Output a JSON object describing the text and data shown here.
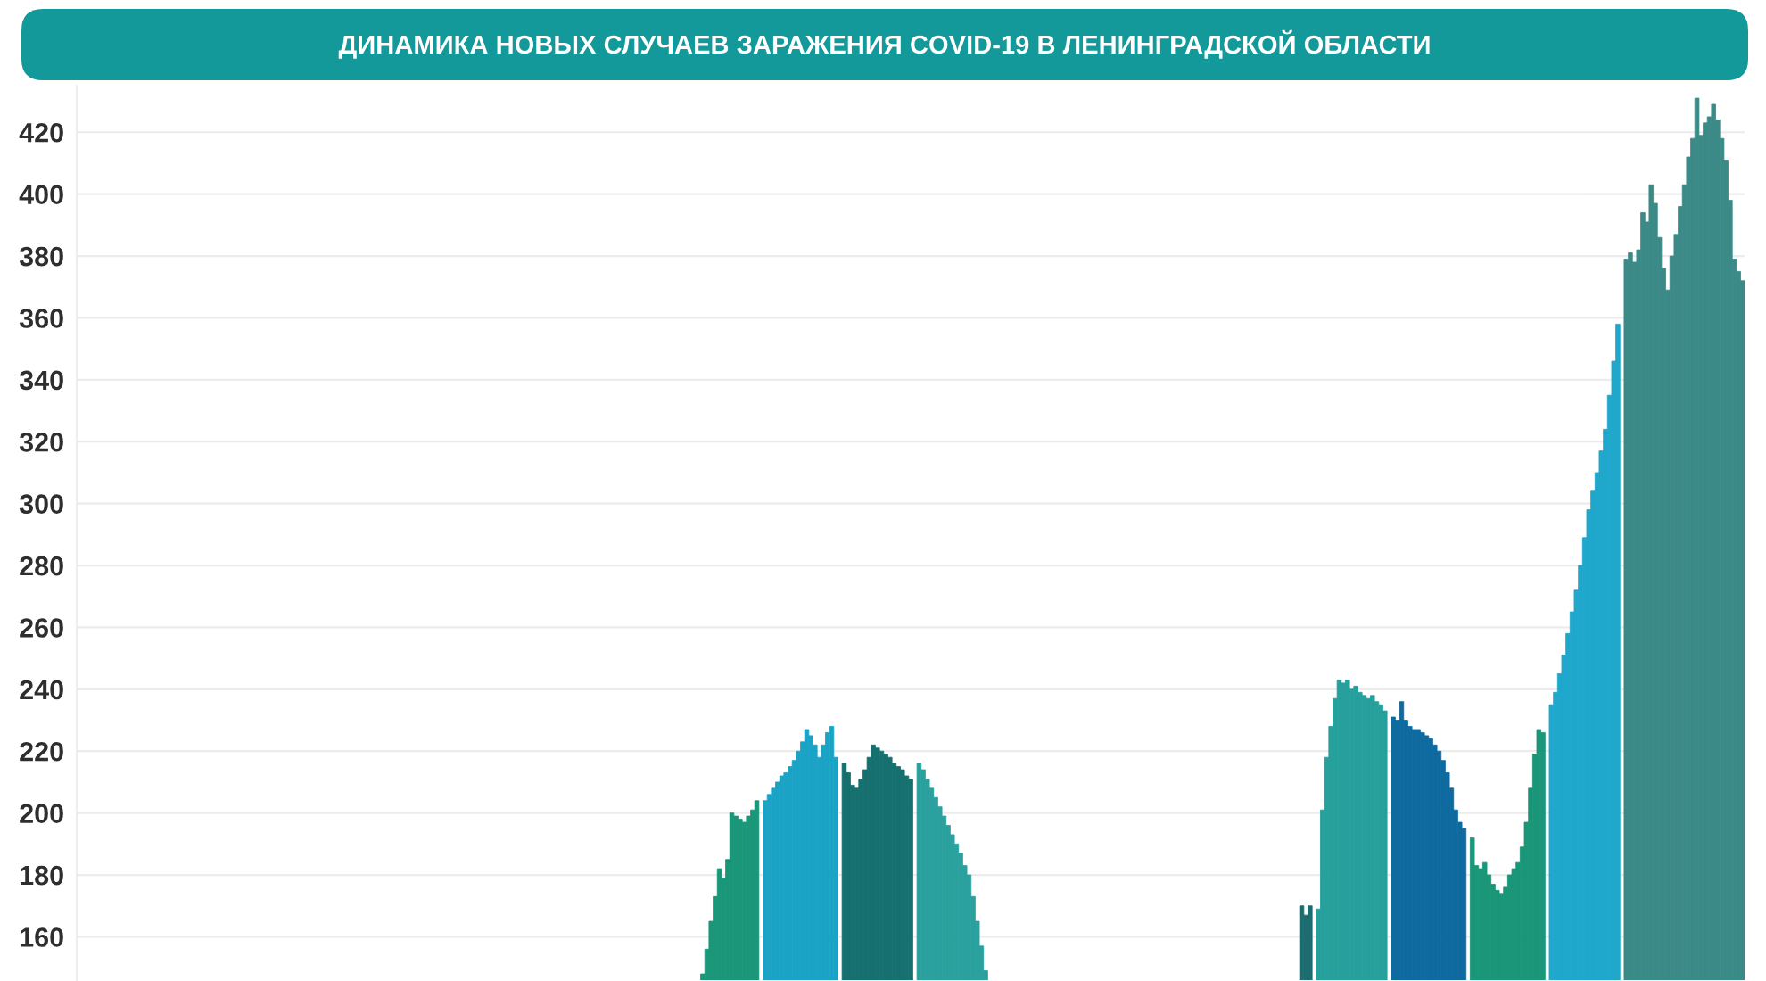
{
  "chart_data": {
    "type": "bar",
    "title": "ДИНАМИКА НОВЫХ СЛУЧАЕВ ЗАРАЖЕНИЯ COVID-19 В ЛЕНИНГРАДСКОЙ ОБЛАСТИ",
    "categories": [
      null,
      null,
      null,
      null,
      null,
      null,
      null,
      null,
      null,
      null,
      null,
      null,
      null,
      null,
      null,
      null,
      null,
      null,
      null,
      null,
      null,
      null,
      null,
      null,
      null,
      null,
      null,
      null,
      null,
      null,
      null,
      null,
      null,
      null,
      null,
      null,
      null,
      null,
      null,
      null,
      null,
      null,
      null,
      null,
      null,
      null,
      null,
      null,
      null,
      null,
      null,
      null,
      null,
      null,
      null,
      null,
      null,
      null,
      null,
      null,
      null,
      null,
      null,
      null,
      null,
      null,
      null,
      null,
      null,
      null,
      null,
      null,
      null,
      null,
      null,
      null,
      null,
      null,
      null,
      null,
      null,
      null,
      null,
      null,
      null,
      null,
      null,
      null,
      null,
      null,
      null,
      null,
      null,
      null,
      null,
      null,
      null,
      null,
      null,
      null,
      null,
      null,
      null,
      null,
      null,
      null,
      null,
      null,
      null,
      null,
      null,
      null,
      null,
      null,
      null,
      null,
      null,
      null,
      null,
      null,
      null,
      null,
      null,
      null,
      null,
      null,
      null,
      null,
      null,
      null,
      null,
      null,
      null,
      null,
      null,
      null,
      null,
      null,
      null,
      null,
      null,
      null,
      null,
      null,
      null,
      null,
      null,
      null,
      null,
      null,
      null,
      null,
      null,
      null,
      null,
      null,
      null,
      null,
      null,
      null,
      null,
      null,
      null,
      null,
      null,
      null,
      null,
      null,
      null,
      null,
      null,
      null,
      null,
      null,
      null,
      null,
      null,
      null,
      null,
      null,
      null,
      null,
      null,
      null,
      null,
      null,
      null,
      null,
      null,
      null,
      null,
      null,
      null,
      null,
      null,
      null,
      null,
      null,
      null,
      null,
      null,
      null,
      null,
      null,
      null,
      null,
      null,
      null,
      null,
      null,
      null,
      null,
      null,
      null,
      null,
      null,
      null,
      null,
      null,
      null,
      null,
      null,
      null,
      null,
      null,
      null,
      null,
      null,
      null,
      null,
      null,
      null,
      null,
      null,
      null,
      null,
      null,
      null,
      null,
      null,
      null,
      null,
      null,
      null,
      null,
      null,
      null,
      null,
      null,
      null,
      null,
      null,
      null,
      null,
      null,
      null,
      null,
      null,
      null,
      null,
      null,
      null,
      null,
      null,
      null,
      null,
      null,
      null,
      null,
      null,
      null,
      null,
      null,
      null,
      null,
      null,
      null,
      null,
      null,
      null,
      null,
      null,
      null,
      null,
      null,
      null,
      null,
      null,
      null,
      null,
      null,
      null,
      null,
      null,
      null,
      null,
      null,
      null,
      null,
      null,
      null,
      null,
      null,
      null,
      null,
      null,
      null,
      null,
      null,
      null,
      null,
      null,
      null,
      null,
      null,
      null,
      null,
      null,
      null,
      null,
      null,
      null,
      null,
      null,
      null,
      null,
      null,
      null,
      null,
      null,
      null,
      null,
      null,
      null,
      null,
      null,
      null,
      null,
      null,
      null,
      null,
      null,
      null,
      null,
      null,
      null,
      null,
      null,
      null,
      null,
      null,
      null,
      null,
      null,
      null,
      null,
      null,
      null,
      null,
      null,
      null,
      null,
      null,
      null,
      null,
      null,
      null,
      null,
      null,
      null,
      null,
      null,
      null,
      null,
      null,
      null,
      null,
      null,
      null,
      null,
      null,
      null,
      null,
      null,
      null,
      null,
      null,
      null,
      null,
      null,
      null,
      null,
      null,
      null,
      null,
      null,
      null,
      null,
      null,
      null,
      null
    ],
    "values": [
      null,
      null,
      null,
      null,
      null,
      null,
      null,
      null,
      null,
      null,
      null,
      null,
      null,
      null,
      null,
      null,
      null,
      null,
      null,
      null,
      null,
      null,
      null,
      null,
      null,
      null,
      null,
      null,
      null,
      null,
      null,
      null,
      null,
      null,
      null,
      null,
      null,
      null,
      null,
      null,
      null,
      null,
      null,
      null,
      null,
      null,
      null,
      null,
      null,
      null,
      null,
      null,
      null,
      null,
      null,
      null,
      null,
      null,
      null,
      null,
      null,
      null,
      null,
      null,
      null,
      null,
      null,
      null,
      null,
      null,
      null,
      null,
      null,
      null,
      null,
      null,
      null,
      null,
      null,
      null,
      null,
      null,
      null,
      null,
      null,
      null,
      null,
      null,
      null,
      null,
      null,
      null,
      null,
      null,
      null,
      null,
      null,
      null,
      null,
      null,
      null,
      null,
      null,
      null,
      null,
      null,
      null,
      null,
      null,
      null,
      null,
      null,
      null,
      null,
      null,
      null,
      null,
      null,
      null,
      null,
      null,
      null,
      null,
      null,
      null,
      null,
      null,
      null,
      null,
      null,
      null,
      null,
      null,
      null,
      null,
      null,
      null,
      null,
      null,
      null,
      null,
      null,
      null,
      null,
      null,
      null,
      null,
      null,
      null,
      null,
      148,
      156,
      165,
      173,
      182,
      179,
      185,
      200,
      199,
      198,
      197,
      199,
      201,
      204,
      null,
      204,
      206,
      208,
      210,
      212,
      213,
      215,
      217,
      220,
      223,
      227,
      225,
      222,
      218,
      222,
      226,
      228,
      218,
      null,
      216,
      213,
      209,
      208,
      211,
      214,
      218,
      222,
      221,
      220,
      219,
      218,
      216,
      215,
      214,
      212,
      211,
      null,
      216,
      214,
      211,
      208,
      205,
      202,
      199,
      196,
      193,
      190,
      187,
      183,
      180,
      173,
      165,
      157,
      149,
      null,
      null,
      null,
      null,
      null,
      null,
      null,
      null,
      null,
      null,
      null,
      null,
      null,
      null,
      null,
      null,
      null,
      null,
      null,
      null,
      null,
      null,
      null,
      null,
      null,
      null,
      null,
      null,
      null,
      null,
      null,
      null,
      null,
      null,
      null,
      null,
      null,
      null,
      null,
      null,
      null,
      null,
      null,
      null,
      null,
      null,
      null,
      null,
      null,
      null,
      null,
      null,
      null,
      null,
      null,
      null,
      null,
      null,
      null,
      null,
      null,
      null,
      null,
      null,
      null,
      null,
      null,
      null,
      null,
      null,
      null,
      null,
      null,
      null,
      null,
      170,
      167,
      170,
      null,
      169,
      201,
      218,
      228,
      237,
      243,
      242,
      243,
      240,
      241,
      239,
      238,
      237,
      238,
      236,
      235,
      233,
      null,
      231,
      230,
      236,
      230,
      228,
      227,
      227,
      226,
      225,
      224,
      222,
      220,
      217,
      213,
      208,
      201,
      197,
      195,
      null,
      192,
      183,
      182,
      184,
      180,
      177,
      175,
      174,
      176,
      180,
      182,
      184,
      189,
      197,
      208,
      219,
      227,
      226,
      null,
      235,
      239,
      245,
      251,
      258,
      265,
      272,
      280,
      289,
      298,
      304,
      310,
      317,
      324,
      335,
      346,
      358,
      null,
      379,
      381,
      378,
      382,
      394,
      391,
      403,
      397,
      386,
      376,
      369,
      380,
      387,
      396,
      403,
      412,
      418,
      431,
      419,
      423,
      425,
      429,
      424,
      418,
      411,
      398,
      379,
      375,
      372
    ],
    "colors": [
      null,
      null,
      null,
      null,
      null,
      null,
      null,
      null,
      null,
      null,
      null,
      null,
      null,
      null,
      null,
      null,
      null,
      null,
      null,
      null,
      null,
      null,
      null,
      null,
      null,
      null,
      null,
      null,
      null,
      null,
      null,
      null,
      null,
      null,
      null,
      null,
      null,
      null,
      null,
      null,
      null,
      null,
      null,
      null,
      null,
      null,
      null,
      null,
      null,
      null,
      null,
      null,
      null,
      null,
      null,
      null,
      null,
      null,
      null,
      null,
      null,
      null,
      null,
      null,
      null,
      null,
      null,
      null,
      null,
      null,
      null,
      null,
      null,
      null,
      null,
      null,
      null,
      null,
      null,
      null,
      null,
      null,
      null,
      null,
      null,
      null,
      null,
      null,
      null,
      null,
      null,
      null,
      null,
      null,
      null,
      null,
      null,
      null,
      null,
      null,
      null,
      null,
      null,
      null,
      null,
      null,
      null,
      null,
      null,
      null,
      null,
      null,
      null,
      null,
      null,
      null,
      null,
      null,
      null,
      null,
      null,
      null,
      null,
      null,
      null,
      null,
      null,
      null,
      null,
      null,
      null,
      null,
      null,
      null,
      null,
      null,
      null,
      null,
      null,
      null,
      null,
      null,
      null,
      null,
      null,
      null,
      null,
      null,
      null,
      null,
      "#1a9678",
      "#1a9678",
      "#1a9678",
      "#1a9678",
      "#1a9678",
      "#1a9678",
      "#1a9678",
      "#1a9678",
      "#1a9678",
      "#1a9678",
      "#1a9678",
      "#1a9678",
      "#1a9678",
      "#1a9678",
      null,
      "#1ba3c6",
      "#1ba3c6",
      "#1ba3c6",
      "#1ba3c6",
      "#1ba3c6",
      "#1ba3c6",
      "#1ba3c6",
      "#1ba3c6",
      "#1ba3c6",
      "#1ba3c6",
      "#1ba3c6",
      "#1ba3c6",
      "#1ba3c6",
      "#1ba3c6",
      "#1ba3c6",
      "#1ba3c6",
      "#1ba3c6",
      "#1ba3c6",
      null,
      "#16706f",
      "#16706f",
      "#16706f",
      "#16706f",
      "#16706f",
      "#16706f",
      "#16706f",
      "#16706f",
      "#16706f",
      "#16706f",
      "#16706f",
      "#16706f",
      "#16706f",
      "#16706f",
      "#16706f",
      "#16706f",
      "#16706f",
      null,
      "#2aa19e",
      "#2aa19e",
      "#2aa19e",
      "#2aa19e",
      "#2aa19e",
      "#2aa19e",
      "#2aa19e",
      "#2aa19e",
      "#2aa19e",
      "#2aa19e",
      "#2aa19e",
      "#2aa19e",
      "#2aa19e",
      "#2aa19e",
      "#2aa19e",
      "#2aa19e",
      "#2aa19e",
      null,
      null,
      null,
      null,
      null,
      null,
      null,
      null,
      null,
      null,
      null,
      null,
      null,
      null,
      null,
      null,
      null,
      null,
      null,
      null,
      null,
      null,
      null,
      null,
      null,
      null,
      null,
      null,
      null,
      null,
      null,
      null,
      null,
      null,
      null,
      null,
      null,
      null,
      null,
      null,
      null,
      null,
      null,
      null,
      null,
      null,
      null,
      null,
      null,
      null,
      null,
      null,
      null,
      null,
      null,
      null,
      null,
      null,
      null,
      null,
      null,
      null,
      null,
      null,
      null,
      null,
      null,
      null,
      null,
      null,
      null,
      null,
      null,
      null,
      null,
      "#1d6c70",
      "#1d6c70",
      "#1d6c70",
      null,
      "#26a09c",
      "#26a09c",
      "#26a09c",
      "#26a09c",
      "#26a09c",
      "#26a09c",
      "#26a09c",
      "#26a09c",
      "#26a09c",
      "#26a09c",
      "#26a09c",
      "#26a09c",
      "#26a09c",
      "#26a09c",
      "#26a09c",
      "#26a09c",
      "#26a09c",
      null,
      "#0f6aa0",
      "#0f6aa0",
      "#0f6aa0",
      "#0f6aa0",
      "#0f6aa0",
      "#0f6aa0",
      "#0f6aa0",
      "#0f6aa0",
      "#0f6aa0",
      "#0f6aa0",
      "#0f6aa0",
      "#0f6aa0",
      "#0f6aa0",
      "#0f6aa0",
      "#0f6aa0",
      "#0f6aa0",
      "#0f6aa0",
      "#0f6aa0",
      null,
      "#1a9678",
      "#1a9678",
      "#1a9678",
      "#1a9678",
      "#1a9678",
      "#1a9678",
      "#1a9678",
      "#1a9678",
      "#1a9678",
      "#1a9678",
      "#1a9678",
      "#1a9678",
      "#1a9678",
      "#1a9678",
      "#1a9678",
      "#1a9678",
      "#1a9678",
      "#1a9678",
      null,
      "#1fa7cc",
      "#1fa7cc",
      "#1fa7cc",
      "#1fa7cc",
      "#1fa7cc",
      "#1fa7cc",
      "#1fa7cc",
      "#1fa7cc",
      "#1fa7cc",
      "#1fa7cc",
      "#1fa7cc",
      "#1fa7cc",
      "#1fa7cc",
      "#1fa7cc",
      "#1fa7cc",
      "#1fa7cc",
      "#1fa7cc",
      null,
      "#3b8a88",
      "#3b8a88",
      "#3b8a88",
      "#3b8a88",
      "#3b8a88",
      "#3b8a88",
      "#3b8a88",
      "#3b8a88",
      "#3b8a88",
      "#3b8a88",
      "#3b8a88",
      "#3b8a88",
      "#3b8a88",
      "#3b8a88",
      "#3b8a88",
      "#3b8a88",
      "#3b8a88",
      "#3b8a88",
      "#3b8a88",
      "#3b8a88",
      "#3b8a88",
      "#3b8a88",
      "#3b8a88",
      "#3b8a88",
      "#3b8a88",
      "#3b8a88",
      "#3b8a88",
      "#3b8a88",
      "#3b8a88"
    ],
    "ylim": [
      146,
      435
    ],
    "yticks": [
      160,
      180,
      200,
      220,
      240,
      260,
      280,
      300,
      320,
      340,
      360,
      380,
      400,
      420
    ],
    "grid": "y",
    "tick_labels": "y"
  }
}
